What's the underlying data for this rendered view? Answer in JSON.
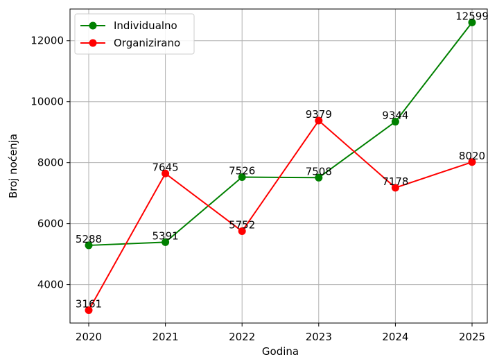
{
  "chart_data": {
    "type": "line",
    "title": "",
    "xlabel": "Godina",
    "ylabel": "Broj noćenja",
    "x": [
      "2020",
      "2021",
      "2022",
      "2023",
      "2024",
      "2025"
    ],
    "series": [
      {
        "name": "Individualno",
        "color": "#008000",
        "values": [
          5288,
          5391,
          7526,
          7508,
          9344,
          12599
        ],
        "labels": [
          "5288",
          "5391",
          "7526",
          "7508",
          "9344",
          "12599"
        ]
      },
      {
        "name": "Organizirano",
        "color": "#ff0000",
        "values": [
          3161,
          7645,
          5752,
          9379,
          7178,
          8020
        ],
        "labels": [
          "3161",
          "7645",
          "5752",
          "9379",
          "7178",
          "8020"
        ]
      }
    ],
    "yticks": [
      4000,
      6000,
      8000,
      10000,
      12000
    ],
    "ytick_labels": [
      "4000",
      "6000",
      "8000",
      "10000",
      "12000"
    ],
    "ylim": [
      2740,
      13040
    ],
    "grid": true,
    "legend_position": "top-left"
  }
}
